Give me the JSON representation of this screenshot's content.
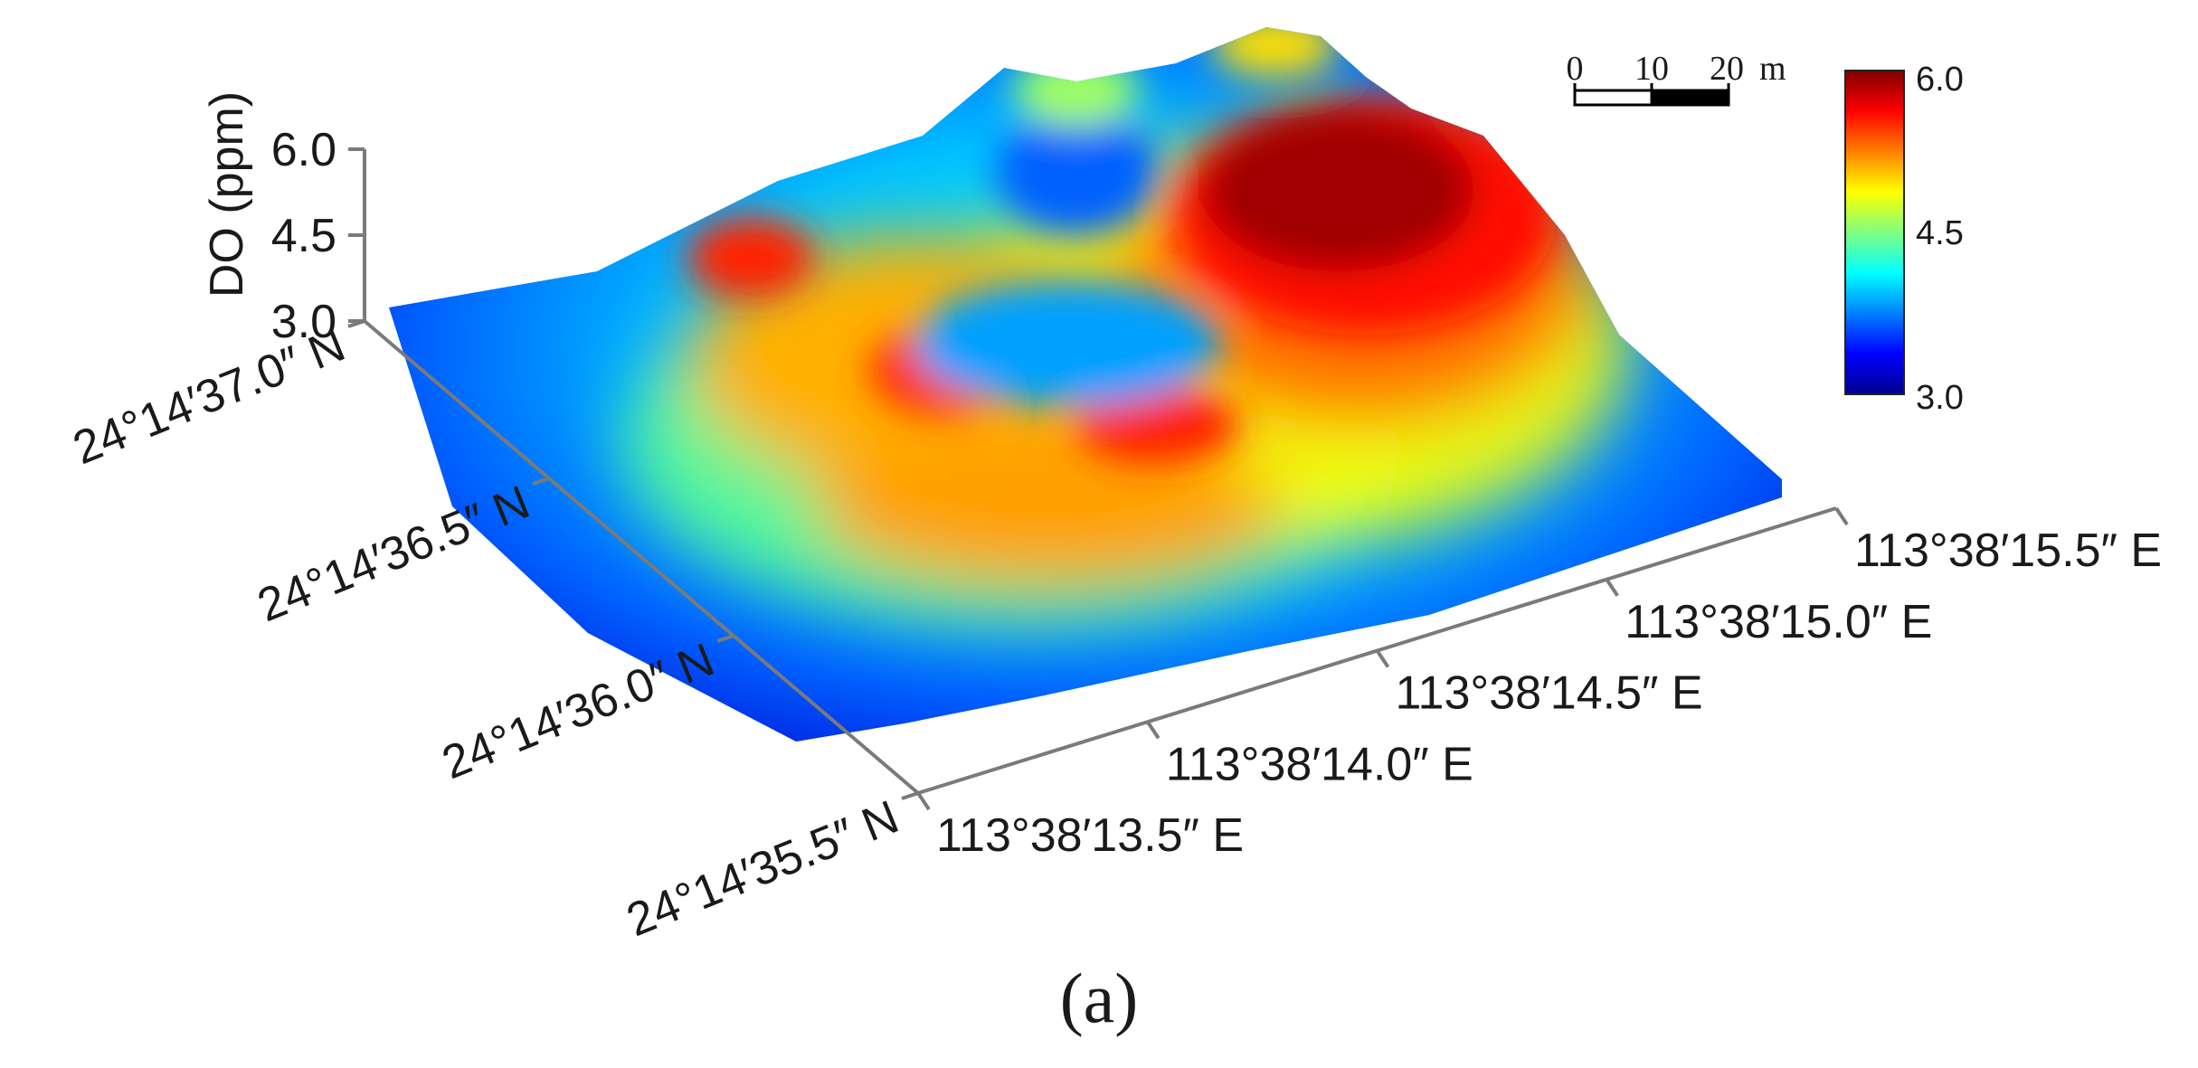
{
  "panel_label": "(a)",
  "colorbar": {
    "max_label": "6.0",
    "mid_label": "4.5",
    "min_label": "3.0",
    "colors": [
      "#00008f",
      "#0000ff",
      "#0080ff",
      "#00ffff",
      "#80ff80",
      "#ffff00",
      "#ff8000",
      "#ff0000",
      "#800000"
    ]
  },
  "scale_bar": {
    "ticks": [
      "0",
      "10",
      "20"
    ],
    "unit": "m"
  },
  "chart_data": {
    "type": "surface3d",
    "zlabel": "DO (ppm)",
    "z_ticks": [
      "6.0",
      "4.5",
      "3.0"
    ],
    "zlim": [
      3.0,
      6.0
    ],
    "x_ticks": [
      "113°38′13.5″ E",
      "113°38′14.0″ E",
      "113°38′14.5″ E",
      "113°38′15.0″ E",
      "113°38′15.5″ E"
    ],
    "y_ticks": [
      "24°14′35.5″ N",
      "24°14′36.0″ N",
      "24°14′36.5″ N",
      "24°14′37.0″ N"
    ],
    "surface_features": [
      {
        "desc": "broad peak (northeast)",
        "x": "113°38′15.0″ E",
        "y": "24°14′37.0″ N",
        "value": 6.0
      },
      {
        "desc": "ridge (north)",
        "x": "113°38′14.5″ E",
        "y": "24°14′37.0″ N",
        "value": 5.2
      },
      {
        "desc": "local peak (south)",
        "x": "113°38′14.3″ E",
        "y": "24°14′36.2″ N",
        "value": 5.7
      },
      {
        "desc": "local peak (west)",
        "x": "113°38′13.8″ E",
        "y": "24°14′36.8″ N",
        "value": 5.6
      },
      {
        "desc": "central depression",
        "x": "113°38′14.3″ E",
        "y": "24°14′36.6″ N",
        "value": 3.6
      },
      {
        "desc": "edge minimum",
        "x": "113°38′13.5″ E",
        "y": "24°14′35.5″ N",
        "value": 3.0
      }
    ]
  }
}
